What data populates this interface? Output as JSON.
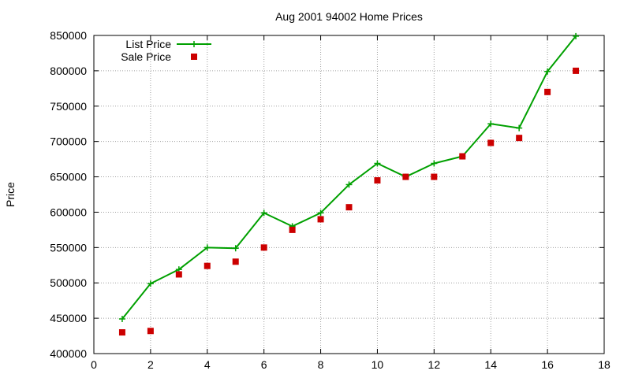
{
  "chart_data": {
    "type": "line",
    "title": "Aug 2001 94002 Home Prices",
    "xlabel": "",
    "ylabel": "Price",
    "xlim": [
      0,
      18
    ],
    "ylim": [
      400000,
      850000
    ],
    "xticks": [
      0,
      2,
      4,
      6,
      8,
      10,
      12,
      14,
      16,
      18
    ],
    "yticks": [
      400000,
      450000,
      500000,
      550000,
      600000,
      650000,
      700000,
      750000,
      800000,
      850000
    ],
    "xtick_labels": [
      "0",
      "2",
      "4",
      "6",
      "8",
      "10",
      "12",
      "14",
      "16",
      "18"
    ],
    "ytick_labels": [
      "400000",
      "450000",
      "500000",
      "550000",
      "600000",
      "650000",
      "700000",
      "750000",
      "800000",
      "850000"
    ],
    "grid": true,
    "legend_position": "top-left",
    "series": [
      {
        "name": "List Price",
        "style": "line-with-plus-markers",
        "color": "#00a000",
        "x": [
          1,
          2,
          3,
          4,
          5,
          6,
          7,
          8,
          9,
          10,
          11,
          12,
          13,
          14,
          15,
          16,
          17
        ],
        "y": [
          449000,
          499000,
          519000,
          550000,
          549000,
          599000,
          580000,
          599000,
          639000,
          669000,
          650000,
          669000,
          679000,
          725000,
          719000,
          799000,
          849000
        ]
      },
      {
        "name": "Sale Price",
        "style": "square-markers",
        "color": "#cc0000",
        "x": [
          1,
          2,
          3,
          4,
          5,
          6,
          7,
          8,
          9,
          10,
          11,
          12,
          13,
          14,
          15,
          16,
          17
        ],
        "y": [
          430000,
          432000,
          512000,
          524000,
          530000,
          550000,
          575000,
          590000,
          607000,
          645000,
          650000,
          650000,
          679000,
          698000,
          705000,
          770000,
          800000
        ]
      }
    ]
  }
}
